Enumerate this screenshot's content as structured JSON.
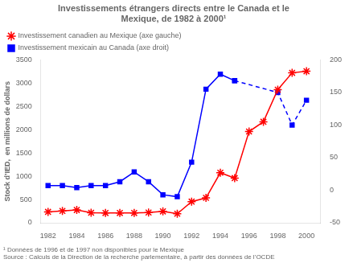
{
  "chart_data": {
    "type": "line",
    "title": "Investissements étrangers directs entre le Canada et le\nMexique, de 1982 à 2000¹",
    "y_label": "Stock d’IED,  en millions de dollars",
    "annotations": [
      "¹ Données de 1996 et de 1997 non disponibles pour le Mexique",
      "Source : Calculs de la Direction de la recherche parlementaire, à partir des données de l’OCDE"
    ],
    "x": [
      1982,
      1983,
      1984,
      1985,
      1986,
      1987,
      1988,
      1989,
      1990,
      1991,
      1992,
      1993,
      1994,
      1995,
      1996,
      1997,
      1998,
      1999,
      2000
    ],
    "series": [
      {
        "name": "Investissement canadien\nau Mexique (axe gauche)",
        "color": "red",
        "marker": "star",
        "line_style": "solid",
        "values": [
          235,
          255,
          275,
          215,
          210,
          210,
          210,
          220,
          245,
          195,
          455,
          535,
          1075,
          960,
          1960,
          2170,
          2860,
          3220,
          3255
        ]
      },
      {
        "name": "Investissement mexicain\nau Canada (axe droit)",
        "color": "blue",
        "marker": "square",
        "line_style": "solid",
        "axis": "y2",
        "values": [
          7,
          7,
          4,
          7,
          7,
          13,
          28,
          13,
          -7,
          -10,
          43,
          155,
          178,
          168,
          null,
          null,
          null,
          null,
          null
        ]
      },
      {
        "color": "blue",
        "marker": "square",
        "line_style": "dashed",
        "axis": "y2",
        "values": [
          null,
          null,
          null,
          null,
          null,
          null,
          null,
          null,
          null,
          null,
          null,
          null,
          null,
          168,
          null,
          null,
          150,
          100,
          138
        ]
      }
    ],
    "xlim": [
      1981.5,
      2001.0
    ],
    "xticks": [
      1982,
      1984,
      1986,
      1988,
      1990,
      1992,
      1994,
      1996,
      1998,
      2000
    ],
    "ylim": [
      0,
      3500
    ],
    "yticks": [
      0,
      500,
      1000,
      1500,
      2000,
      2500,
      3000,
      3500
    ],
    "y2lim": [
      -50,
      200
    ],
    "y2ticks": [
      -50,
      0,
      50,
      100,
      150,
      200
    ],
    "legend": "upper left",
    "grid": false
  }
}
